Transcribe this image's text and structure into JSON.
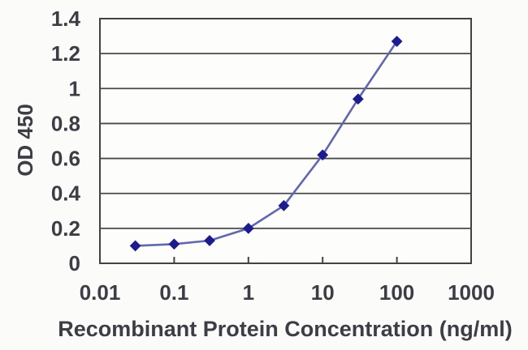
{
  "chart_data": {
    "type": "line",
    "title": "",
    "xlabel": "Recombinant Protein Concentration (ng/ml)",
    "ylabel": "OD 450",
    "x_scale": "log",
    "xlim": [
      0.01,
      1000
    ],
    "ylim": [
      0,
      1.4
    ],
    "x": [
      0.03,
      0.1,
      0.3,
      1,
      3,
      10,
      30,
      100
    ],
    "y": [
      0.1,
      0.11,
      0.13,
      0.2,
      0.33,
      0.62,
      0.94,
      1.27
    ],
    "x_ticks": [
      0.1,
      1,
      10,
      100
    ],
    "x_tick_labels": [
      "0.01",
      "0.1",
      "1",
      "10",
      "100",
      "1000"
    ],
    "x_tick_label_values": [
      0.01,
      0.1,
      1,
      10,
      100,
      1000
    ],
    "y_ticks": [
      0.2,
      0.4,
      0.6,
      0.8,
      1.0,
      1.2
    ],
    "y_tick_labels": [
      "0",
      "0.2",
      "0.4",
      "0.6",
      "0.8",
      "1",
      "1.2",
      "1.4"
    ],
    "y_tick_label_values": [
      0,
      0.2,
      0.4,
      0.6,
      0.8,
      1.0,
      1.2,
      1.4
    ],
    "grid": "horizontal",
    "legend": "none",
    "marker": "diamond",
    "colors": {
      "line": "#6167ac",
      "marker": "#1c1c8e",
      "grid": "#4a4a4a",
      "frame": "#424242",
      "text": "#3d3d46",
      "plot_bg": "#fdfdfc",
      "page_bg": "#fbfbfa"
    }
  }
}
